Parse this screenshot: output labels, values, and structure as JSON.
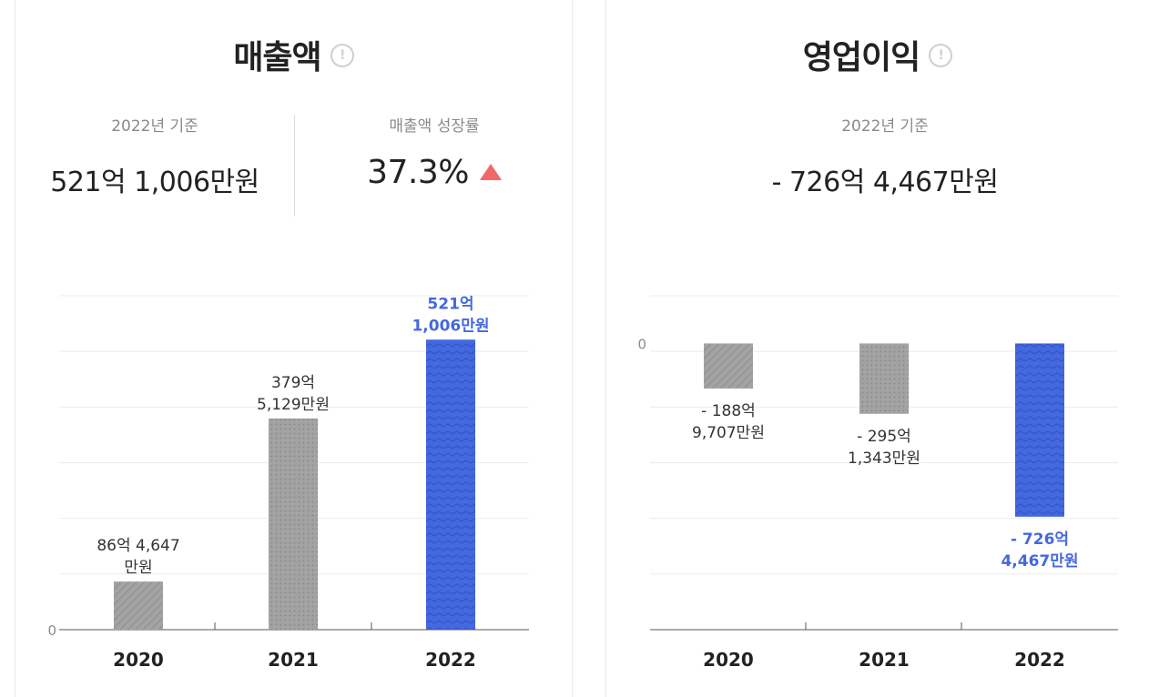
{
  "revenue": {
    "title": "매출액",
    "basis_label": "2022년 기준",
    "basis_value": "521억 1,006만원",
    "growth_label": "매출액 성장률",
    "growth_value": "37.3%",
    "growth_direction": "up"
  },
  "operating_profit": {
    "title": "영업이익",
    "basis_label": "2022년 기준",
    "basis_value": "- 726억 4,467만원"
  },
  "colors": {
    "gray_bar": "#a3a3a3",
    "highlight_bar": "#4468e0",
    "highlight_text": "#4468e0",
    "up_arrow": "#f06868"
  },
  "chart_data": [
    {
      "type": "bar",
      "title": "매출액",
      "categories": [
        "2020",
        "2021",
        "2022"
      ],
      "values": [
        8646.47,
        37951.29,
        52110.06
      ],
      "data_labels": [
        [
          "86억 4,647",
          "만원"
        ],
        [
          "379억",
          "5,129만원"
        ],
        [
          "521억",
          "1,006만원"
        ]
      ],
      "units": "백만원",
      "y_tick_labels": [
        "0"
      ],
      "ylim": [
        0,
        60000
      ],
      "grid": true,
      "legend": "none",
      "highlight_index": 2
    },
    {
      "type": "bar",
      "title": "영업이익",
      "categories": [
        "2020",
        "2021",
        "2022"
      ],
      "values": [
        -18897.07,
        -29513.43,
        -72644.67
      ],
      "data_labels": [
        [
          "- 188억",
          "9,707만원"
        ],
        [
          "- 295억",
          "1,343만원"
        ],
        [
          "- 726억",
          "4,467만원"
        ]
      ],
      "units": "백만원",
      "y_tick_labels": [
        "0"
      ],
      "ylim": [
        -120000,
        20000
      ],
      "grid": true,
      "legend": "none",
      "highlight_index": 2
    }
  ]
}
